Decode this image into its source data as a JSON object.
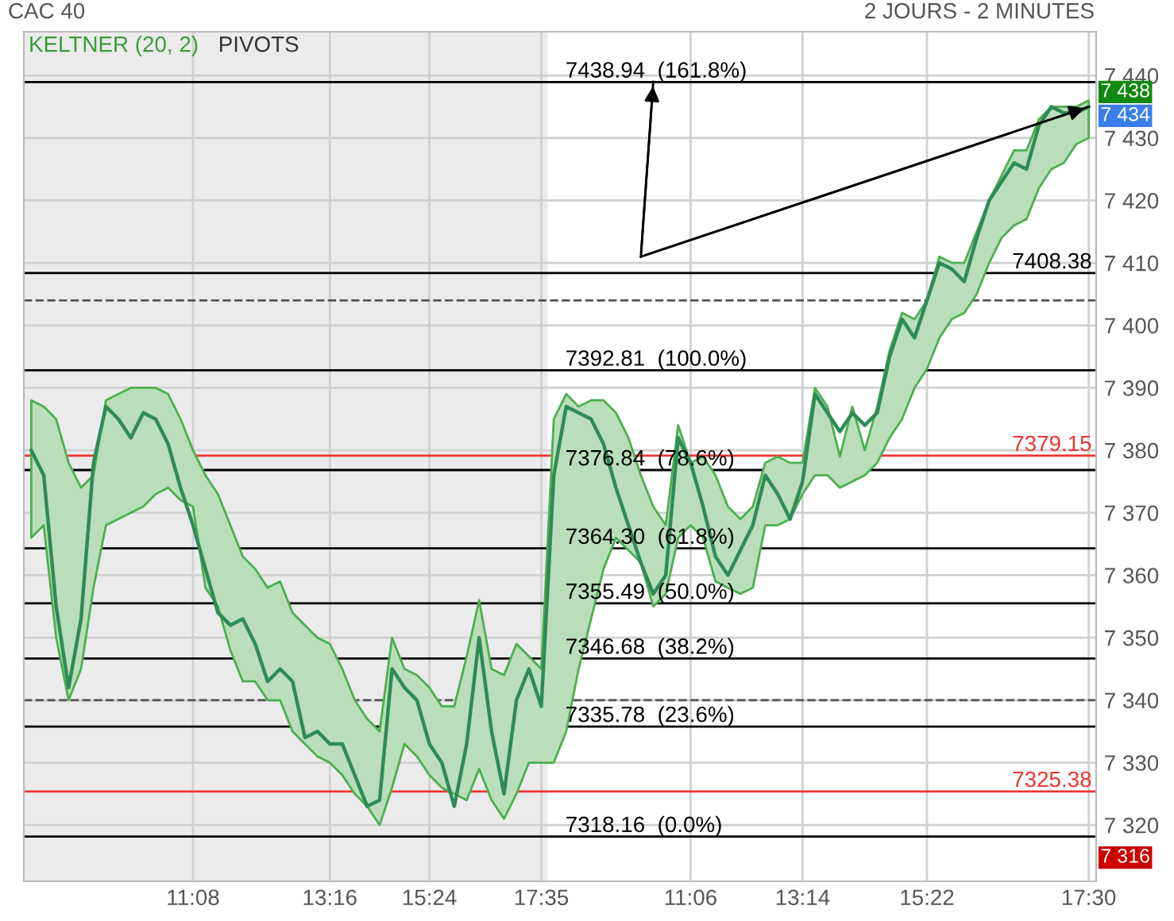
{
  "chart_data": {
    "type": "line",
    "title": "CAC 40",
    "subtitle": "2 JOURS - 2 MINUTES",
    "categories": [
      null,
      null,
      null,
      null,
      null,
      null,
      null,
      null,
      null,
      null,
      null,
      null,
      null,
      "11:08",
      null,
      null,
      null,
      null,
      null,
      null,
      null,
      null,
      null,
      null,
      "13:16",
      null,
      null,
      null,
      null,
      null,
      null,
      null,
      "15:24",
      null,
      null,
      null,
      null,
      null,
      null,
      null,
      null,
      "17:35",
      null,
      null,
      null,
      null,
      null,
      null,
      null,
      null,
      null,
      null,
      null,
      "11:06",
      null,
      null,
      null,
      null,
      null,
      null,
      null,
      null,
      "13:14",
      null,
      null,
      null,
      null,
      null,
      null,
      null,
      null,
      null,
      "15:22",
      null,
      null,
      null,
      null,
      null,
      null,
      null,
      null,
      null,
      null,
      null,
      null,
      "17:30"
    ],
    "series": [
      {
        "color": "#2e8b57",
        "values": [
          7380,
          7376,
          7355,
          7342,
          7353,
          7378,
          7387,
          7385,
          7382,
          7386,
          7385,
          7381,
          7374,
          7368,
          7361,
          7354,
          7352,
          7353,
          7349,
          7343,
          7345,
          7343,
          7334,
          7335,
          7333,
          7333,
          7328,
          7323,
          7324,
          7345,
          7342,
          7340,
          7333,
          7330,
          7323,
          7333,
          7350,
          7335,
          7325,
          7340,
          7345,
          7339,
          7376,
          7387,
          7386,
          7385,
          7381,
          7374,
          7368,
          7362,
          7357,
          7360,
          7382,
          7378,
          7371,
          7363,
          7360,
          7364,
          7368,
          7376,
          7373,
          7369,
          7375,
          7389,
          7386,
          7383,
          7386,
          7384,
          7386,
          7395,
          7401,
          7398,
          7404,
          7410,
          7409,
          7407,
          7414,
          7420,
          7423,
          7426,
          7425,
          7432,
          7435,
          7434,
          7434,
          7435
        ],
        "upper": [
          7388,
          7387,
          7385,
          7378,
          7374,
          7376,
          7388,
          7389,
          7390,
          7390,
          7390,
          7389,
          7385,
          7380,
          7376,
          7373,
          7368,
          7363,
          7361,
          7358,
          7359,
          7354,
          7352,
          7350,
          7349,
          7345,
          7340,
          7337,
          7335,
          7350,
          7345,
          7344,
          7342,
          7339,
          7339,
          7347,
          7356,
          7345,
          7344,
          7349,
          7347,
          7345,
          7385,
          7389,
          7387,
          7388,
          7388,
          7386,
          7382,
          7376,
          7371,
          7368,
          7384,
          7378,
          7379,
          7376,
          7371,
          7369,
          7371,
          7378,
          7379,
          7378,
          7378,
          7390,
          7387,
          7379,
          7387,
          7380,
          7387,
          7396,
          7402,
          7401,
          7404,
          7411,
          7410,
          7410,
          7415,
          7420,
          7424,
          7428,
          7428,
          7433,
          7435,
          7435,
          7435,
          7436
        ],
        "lower": [
          7366,
          7368,
          7350,
          7340,
          7345,
          7358,
          7368,
          7369,
          7370,
          7371,
          7373,
          7374,
          7372,
          7371,
          7358,
          7355,
          7348,
          7343,
          7343,
          7340,
          7340,
          7335,
          7333,
          7331,
          7330,
          7328,
          7325,
          7323,
          7320,
          7326,
          7333,
          7331,
          7328,
          7326,
          7325,
          7324,
          7329,
          7324,
          7321,
          7325,
          7330,
          7330,
          7330,
          7335,
          7345,
          7353,
          7361,
          7366,
          7364,
          7362,
          7355,
          7357,
          7366,
          7368,
          7366,
          7359,
          7358,
          7357,
          7358,
          7368,
          7368,
          7369,
          7373,
          7376,
          7376,
          7374,
          7375,
          7376,
          7378,
          7382,
          7385,
          7390,
          7393,
          7398,
          7401,
          7402,
          7405,
          7410,
          7414,
          7416,
          7417,
          7422,
          7425,
          7426,
          7429,
          7430
        ]
      },
      {
        "color": "#000000",
        "values": [
          null,
          null,
          null,
          null,
          null,
          null,
          null,
          null,
          null,
          null,
          null,
          null,
          null,
          null,
          null,
          null,
          null,
          null,
          null,
          null,
          null,
          null,
          null,
          null,
          null,
          null,
          null,
          null,
          null,
          null,
          null,
          null,
          null,
          null,
          null,
          null,
          null,
          null,
          null,
          null,
          null,
          null,
          null,
          null,
          null,
          null,
          null,
          null,
          null,
          7411,
          null,
          null,
          null,
          null,
          null,
          null,
          null,
          null,
          null,
          null,
          null,
          null,
          null,
          null,
          null,
          null,
          null,
          null,
          null,
          null,
          null,
          null,
          null,
          null,
          null,
          null,
          null,
          null,
          null,
          null,
          null,
          null,
          null,
          null,
          null,
          7435
        ]
      },
      {
        "color": "#000000",
        "values": [
          null,
          null,
          null,
          null,
          null,
          null,
          null,
          null,
          null,
          null,
          null,
          null,
          null,
          null,
          null,
          null,
          null,
          null,
          null,
          null,
          null,
          null,
          null,
          null,
          null,
          null,
          null,
          null,
          null,
          null,
          null,
          null,
          null,
          null,
          null,
          null,
          null,
          null,
          null,
          null,
          null,
          null,
          null,
          null,
          null,
          null,
          null,
          null,
          null,
          7411,
          7439,
          null,
          null,
          null,
          null,
          null,
          null,
          null,
          null,
          null,
          null,
          null,
          null,
          null,
          null,
          null,
          null,
          null,
          null,
          null,
          null,
          null,
          null,
          null,
          null,
          null,
          null,
          null,
          null,
          null,
          null,
          null,
          null,
          null,
          null,
          null
        ]
      }
    ],
    "ylim": [
      7311,
      7447
    ],
    "yticks": [
      {
        "value": 7320,
        "label": "7 320"
      },
      {
        "value": 7330,
        "label": "7 330"
      },
      {
        "value": 7340,
        "label": "7 340"
      },
      {
        "value": 7350,
        "label": "7 350"
      },
      {
        "value": 7360,
        "label": "7 360"
      },
      {
        "value": 7370,
        "label": "7 370"
      },
      {
        "value": 7380,
        "label": "7 380"
      },
      {
        "value": 7390,
        "label": "7 390"
      },
      {
        "value": 7400,
        "label": "7 400"
      },
      {
        "value": 7410,
        "label": "7 410"
      },
      {
        "value": 7420,
        "label": "7 420"
      },
      {
        "value": 7430,
        "label": "7 430"
      },
      {
        "value": 7440,
        "label": "7 440"
      }
    ],
    "grid": true,
    "marker": "none",
    "line_style": "solid",
    "ref_lines": [
      {
        "axis": "y",
        "value": 7438.94,
        "label": "7438.94  (161.8%)",
        "color": "#000000"
      },
      {
        "axis": "y",
        "value": 7392.81,
        "label": "7392.81  (100.0%)",
        "color": "#000000"
      },
      {
        "axis": "y",
        "value": 7376.84,
        "label": "7376.84  (78.6%)",
        "color": "#000000"
      },
      {
        "axis": "y",
        "value": 7364.3,
        "label": "7364.30  (61.8%)",
        "color": "#000000"
      },
      {
        "axis": "y",
        "value": 7355.49,
        "label": "7355.49  (50.0%)",
        "color": "#000000"
      },
      {
        "axis": "y",
        "value": 7346.68,
        "label": "7346.68  (38.2%)",
        "color": "#000000"
      },
      {
        "axis": "y",
        "value": 7335.78,
        "label": "7335.78  (23.6%)",
        "color": "#000000"
      },
      {
        "axis": "y",
        "value": 7318.16,
        "label": "7318.16  (0.0%)",
        "color": "#000000"
      },
      {
        "axis": "y",
        "value": 7408.38,
        "label": "7408.38",
        "color": "#000000"
      },
      {
        "axis": "y",
        "value": 7379.15,
        "label": "7379.15",
        "color": "#ee3333"
      },
      {
        "axis": "y",
        "value": 7325.38,
        "label": "7325.38",
        "color": "#ee3333"
      },
      {
        "axis": "y",
        "value": 7404,
        "color": "#555555",
        "line_style": "dashed"
      },
      {
        "axis": "y",
        "value": 7340,
        "color": "#555555",
        "line_style": "dashed"
      }
    ],
    "annotations": [
      "KELTNER (20, 2)",
      "PIVOTS",
      "7 438",
      "7 434",
      "7 316"
    ]
  }
}
